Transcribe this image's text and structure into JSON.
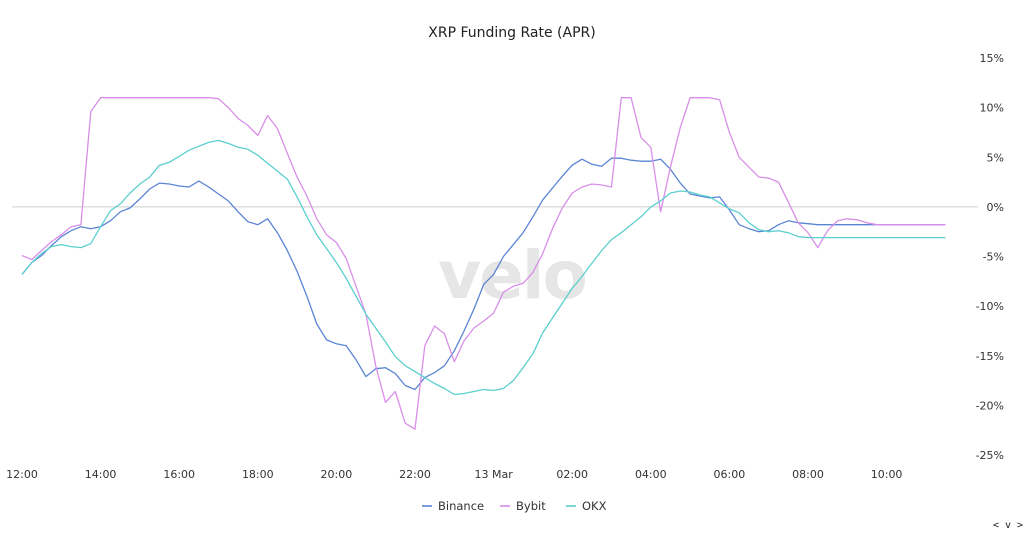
{
  "chart_data": {
    "type": "line",
    "title": "XRP Funding Rate (APR)",
    "watermark": "velo",
    "nav_label": "< v >",
    "x_ticks": [
      "12:00",
      "14:00",
      "16:00",
      "18:00",
      "20:00",
      "22:00",
      "13 Mar",
      "02:00",
      "04:00",
      "06:00",
      "08:00",
      "10:00"
    ],
    "y_ticks": [
      "15%",
      "10%",
      "5%",
      "0%",
      "-5%",
      "-10%",
      "-15%",
      "-20%",
      "-25%"
    ],
    "ylim": [
      -25,
      15
    ],
    "xlim_hours": [
      0,
      23.7
    ],
    "y_axis_side": "right",
    "zero_line": true,
    "legend_position": "bottom-center",
    "x": [
      0,
      0.25,
      0.5,
      0.75,
      1,
      1.25,
      1.5,
      1.75,
      2,
      2.25,
      2.5,
      2.75,
      3,
      3.25,
      3.5,
      3.75,
      4,
      4.25,
      4.5,
      4.75,
      5,
      5.25,
      5.5,
      5.75,
      6,
      6.25,
      6.5,
      6.75,
      7,
      7.25,
      7.5,
      7.75,
      8,
      8.25,
      8.5,
      8.75,
      9,
      9.25,
      9.5,
      9.75,
      10,
      10.25,
      10.5,
      10.75,
      11,
      11.25,
      11.5,
      11.75,
      12,
      12.25,
      12.5,
      12.75,
      13,
      13.25,
      13.5,
      13.75,
      14,
      14.25,
      14.5,
      14.75,
      15,
      15.25,
      15.5,
      15.75,
      16,
      16.25,
      16.5,
      16.75,
      17,
      17.25,
      17.5,
      17.75,
      18,
      18.25,
      18.5,
      18.75,
      19,
      19.25,
      19.5,
      19.75,
      20,
      20.25,
      20.5,
      20.75,
      21,
      21.25,
      21.5,
      21.75,
      22,
      22.25,
      22.5,
      22.75,
      23,
      23.25,
      23.5
    ],
    "series": [
      {
        "name": "Binance",
        "color": "#5b84d4",
        "values": [
          -6.8,
          -5.6,
          -4.9,
          -3.9,
          -3,
          -2.4,
          -2,
          -2.2,
          -2,
          -1.4,
          -0.5,
          -0.1,
          0.8,
          1.8,
          2.4,
          2.3,
          2.1,
          2,
          2.6,
          2,
          1.3,
          0.6,
          -0.5,
          -1.5,
          -1.8,
          -1.2,
          -2.6,
          -4.4,
          -6.5,
          -9,
          -11.8,
          -13.4,
          -13.8,
          -14,
          -15.4,
          -17.1,
          -16.3,
          -16.2,
          -16.8,
          -18,
          -18.4,
          -17.2,
          -16.7,
          -16,
          -14.5,
          -12.5,
          -10.3,
          -7.8,
          -6.8,
          -5,
          -3.8,
          -2.6,
          -1,
          0.7,
          1.9,
          3.1,
          4.2,
          4.8,
          4.3,
          4.1,
          4.9,
          4.9,
          4.7,
          4.6,
          4.6,
          4.8,
          3.8,
          2.4,
          1.3,
          1.1,
          0.9,
          1,
          -0.3,
          -1.8,
          -2.2,
          -2.5,
          -2.4,
          -1.8,
          -1.4,
          -1.6,
          -1.7,
          -1.8,
          -1.8,
          -1.8,
          -1.8,
          -1.8,
          -1.8,
          -1.8,
          -1.8,
          -1.8,
          -1.8,
          -1.8,
          -1.8,
          -1.8,
          -1.8
        ]
      },
      {
        "name": "Bybit",
        "color": "#d98ee8",
        "values": [
          -4.9,
          -5.3,
          -4.4,
          -3.5,
          -2.8,
          -2,
          -1.8,
          9.6,
          11,
          11,
          11,
          11,
          11,
          11,
          11,
          11,
          11,
          11,
          11,
          11,
          10.9,
          10,
          8.9,
          8.2,
          7.2,
          9.2,
          7.9,
          5.4,
          3,
          1.1,
          -1.2,
          -2.8,
          -3.6,
          -5.2,
          -8,
          -10.8,
          -16,
          -19.7,
          -18.6,
          -21.8,
          -22.4,
          -14,
          -12,
          -12.8,
          -15.6,
          -13.5,
          -12.2,
          -11.5,
          -10.7,
          -8.6,
          -8,
          -7.7,
          -6.6,
          -4.7,
          -2.2,
          -0.1,
          1.4,
          2,
          2.3,
          2.2,
          2,
          11,
          11,
          7,
          6,
          -0.5,
          4,
          8,
          11,
          11,
          11,
          10.8,
          7.5,
          5,
          4,
          3,
          2.9,
          2.5,
          0.5,
          -1.6,
          -2.6,
          -4.1,
          -2.4,
          -1.4,
          -1.2,
          -1.3,
          -1.6,
          -1.8,
          -1.8,
          -1.8,
          -1.8,
          -1.8,
          -1.8,
          -1.8,
          -1.8
        ]
      },
      {
        "name": "OKX",
        "color": "#5ccfcf",
        "values": [
          -6.8,
          -5.6,
          -4.7,
          -4,
          -3.8,
          -4,
          -4.1,
          -3.7,
          -2,
          -0.4,
          0.3,
          1.4,
          2.3,
          3,
          4.2,
          4.5,
          5.1,
          5.7,
          6.1,
          6.5,
          6.7,
          6.4,
          6,
          5.8,
          5.2,
          4.4,
          3.6,
          2.8,
          1,
          -1,
          -2.8,
          -4.2,
          -5.6,
          -7.2,
          -9,
          -10.8,
          -12.2,
          -13.6,
          -15.1,
          -16,
          -16.6,
          -17.2,
          -17.8,
          -18.3,
          -18.9,
          -18.8,
          -18.6,
          -18.4,
          -18.5,
          -18.3,
          -17.5,
          -16.2,
          -14.8,
          -12.7,
          -11.2,
          -9.7,
          -8.2,
          -7,
          -5.7,
          -4.4,
          -3.3,
          -2.6,
          -1.8,
          -1,
          0,
          0.6,
          1.4,
          1.6,
          1.5,
          1.2,
          1,
          0.4,
          -0.2,
          -0.6,
          -1.6,
          -2.3,
          -2.5,
          -2.4,
          -2.6,
          -3,
          -3.1,
          -3.1,
          -3.1,
          -3.1,
          -3.1,
          -3.1,
          -3.1,
          -3.1,
          -3.1,
          -3.1,
          -3.1,
          -3.1,
          -3.1,
          -3.1,
          -3.1
        ]
      }
    ]
  }
}
